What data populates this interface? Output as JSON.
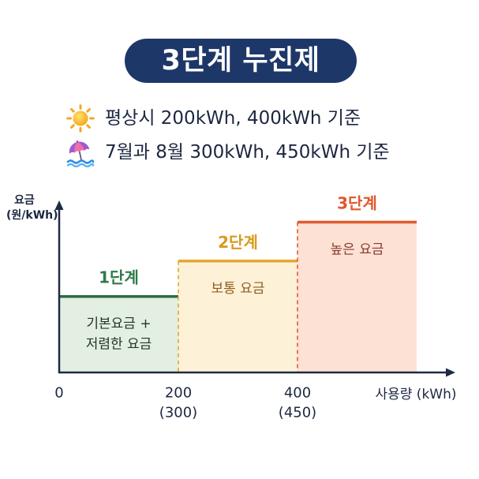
{
  "legend": [
    {
      "icon": "sun-icon",
      "text": "평상시 200kWh, 400kWh 기준"
    },
    {
      "icon": "beach-umbrella-icon",
      "text": "7월과 8월 300kWh, 450kWh 기준"
    }
  ],
  "colors": {
    "title_background": "#1e3769",
    "title_text": "#ffffff",
    "axis": "#1f2a44",
    "text": "#1c2740"
  },
  "chart_data": {
    "type": "area",
    "title": "3단계 누진제",
    "xlabel": "사용량 (kWh)",
    "ylabel": "요금",
    "ylabel_unit": "(원/kWh)",
    "grid": false,
    "x_ticks": [
      {
        "value": 0,
        "label": "0"
      },
      {
        "value": 200,
        "label": "200",
        "summer_label": "(300)"
      },
      {
        "value": 400,
        "label": "400",
        "summer_label": "(450)"
      }
    ],
    "series": [
      {
        "name": "1단계",
        "x_start": 0,
        "x_end": 200,
        "level": 0.45,
        "desc": [
          "기본요금 +",
          "저렴한 요금"
        ],
        "line_color": "#2e6b45",
        "label_color": "#2f7a4a",
        "fill": "#e3efe1",
        "desc_color": "#26352b"
      },
      {
        "name": "2단계",
        "x_start": 200,
        "x_end": 400,
        "level": 0.66,
        "desc": [
          "보통 요금"
        ],
        "line_color": "#e4a830",
        "label_color": "#d99a1c",
        "fill": "#fdf1d8",
        "desc_color": "#8f5e1c"
      },
      {
        "name": "3단계",
        "x_start": 400,
        "x_end": null,
        "level": 0.89,
        "desc": [
          "높은 요금"
        ],
        "line_color": "#e05a2c",
        "label_color": "#e0572b",
        "fill": "#fde1d5",
        "desc_color": "#8a3b2b"
      }
    ]
  }
}
